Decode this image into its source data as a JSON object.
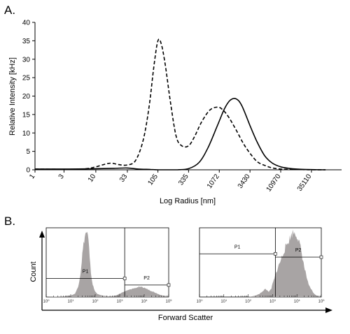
{
  "panels": {
    "a_label": "A.",
    "b_label": "B."
  },
  "chart_data": [
    {
      "type": "line",
      "title": "",
      "xlabel": "Log Radius [nm]",
      "ylabel": "Relative Intensity [kHz]",
      "x_scale": "log",
      "xlim": [
        1,
        110000
      ],
      "ylim": [
        0,
        40
      ],
      "y_ticks": [
        0,
        5,
        10,
        15,
        20,
        25,
        30,
        35,
        40
      ],
      "x_ticks": [
        1,
        3,
        10,
        33,
        105,
        335,
        1072,
        3430,
        10970,
        35110
      ],
      "x_tick_labels": [
        "1",
        "3",
        "10",
        "33",
        "105",
        "335",
        "1072",
        "3430",
        "10970",
        "35110"
      ],
      "series": [
        {
          "style": "dashed",
          "x": [
            1,
            2,
            4,
            7,
            10,
            14,
            18,
            24,
            33,
            45,
            60,
            75,
            90,
            105,
            120,
            140,
            170,
            210,
            260,
            335,
            420,
            550,
            750,
            1000,
            1200,
            1500,
            2000,
            2700,
            3430,
            4500,
            6000,
            8000,
            10970,
            15000,
            25000,
            35110,
            60000
          ],
          "y": [
            0.2,
            0.15,
            0.1,
            0.3,
            0.8,
            1.5,
            1.8,
            1.4,
            1.3,
            2.5,
            8,
            17,
            28,
            35,
            34,
            28,
            18,
            9,
            6.5,
            6.5,
            9,
            13,
            16.2,
            17,
            16.4,
            14.5,
            11,
            7,
            4.5,
            2.2,
            1.2,
            0.5,
            0.2,
            0.1,
            0.05,
            0,
            0
          ]
        },
        {
          "style": "solid",
          "x": [
            1,
            3,
            10,
            20,
            33,
            50,
            80,
            105,
            150,
            220,
            335,
            500,
            700,
            1000,
            1300,
            1600,
            2000,
            2500,
            3430,
            4500,
            6000,
            8000,
            10970,
            15000,
            20000,
            35110,
            60000
          ],
          "y": [
            0.2,
            0.2,
            0.3,
            0.4,
            0.5,
            0.2,
            0.1,
            0,
            0,
            0,
            0.3,
            2,
            6,
            12,
            16.5,
            18.8,
            19.3,
            17.5,
            12,
            7.5,
            3.8,
            1.8,
            0.8,
            0.4,
            0.2,
            0.05,
            0
          ]
        }
      ]
    },
    {
      "type": "area",
      "title": "",
      "xlabel": "",
      "ylabel": "",
      "x_scale": "log",
      "xlim": [
        1,
        100000
      ],
      "ylim": [
        0,
        1
      ],
      "color": "#a8a4a4",
      "x_ticks": [
        1,
        10,
        100,
        1000,
        10000,
        100000
      ],
      "gates": [
        {
          "name": "P1",
          "from": 1,
          "to": 1600,
          "level": 0.28
        },
        {
          "name": "P2",
          "from": 1600,
          "to": 100000,
          "level": 0.18
        }
      ],
      "x": [
        1,
        5,
        10,
        15,
        20,
        25,
        30,
        35,
        40,
        45,
        50,
        55,
        60,
        70,
        80,
        90,
        100,
        130,
        200,
        400,
        700,
        1000,
        1500,
        3000,
        6000,
        10000,
        20000,
        40000,
        70000,
        100000
      ],
      "y": [
        0,
        0.01,
        0.02,
        0.05,
        0.15,
        0.35,
        0.65,
        0.85,
        0.95,
        0.98,
        0.92,
        0.78,
        0.55,
        0.3,
        0.18,
        0.12,
        0.08,
        0.04,
        0.02,
        0.01,
        0.02,
        0.05,
        0.08,
        0.12,
        0.15,
        0.14,
        0.09,
        0.04,
        0.01,
        0
      ]
    },
    {
      "type": "area",
      "title": "",
      "xlabel": "",
      "ylabel": "",
      "x_scale": "log",
      "xlim": [
        1,
        100000
      ],
      "ylim": [
        0,
        1
      ],
      "color": "#a8a4a4",
      "x_ticks": [
        1,
        10,
        100,
        1000,
        10000,
        100000
      ],
      "gates": [
        {
          "name": "P1",
          "from": 1,
          "to": 1300,
          "level": 0.65
        },
        {
          "name": "P2",
          "from": 1300,
          "to": 100000,
          "level": 0.6
        }
      ],
      "x": [
        1,
        100,
        200,
        300,
        400,
        500,
        600,
        700,
        800,
        900,
        1000,
        1200,
        1500,
        2000,
        3000,
        5000,
        7000,
        10000,
        14000,
        20000,
        30000,
        50000,
        70000,
        100000
      ],
      "y": [
        0,
        0,
        0.02,
        0.05,
        0.09,
        0.12,
        0.1,
        0.08,
        0.1,
        0.13,
        0.2,
        0.28,
        0.4,
        0.52,
        0.7,
        0.88,
        0.98,
        0.93,
        0.75,
        0.45,
        0.18,
        0.05,
        0.01,
        0
      ]
    }
  ],
  "fc_axes": {
    "ylabel": "Count",
    "xlabel": "Forward Scatter"
  }
}
